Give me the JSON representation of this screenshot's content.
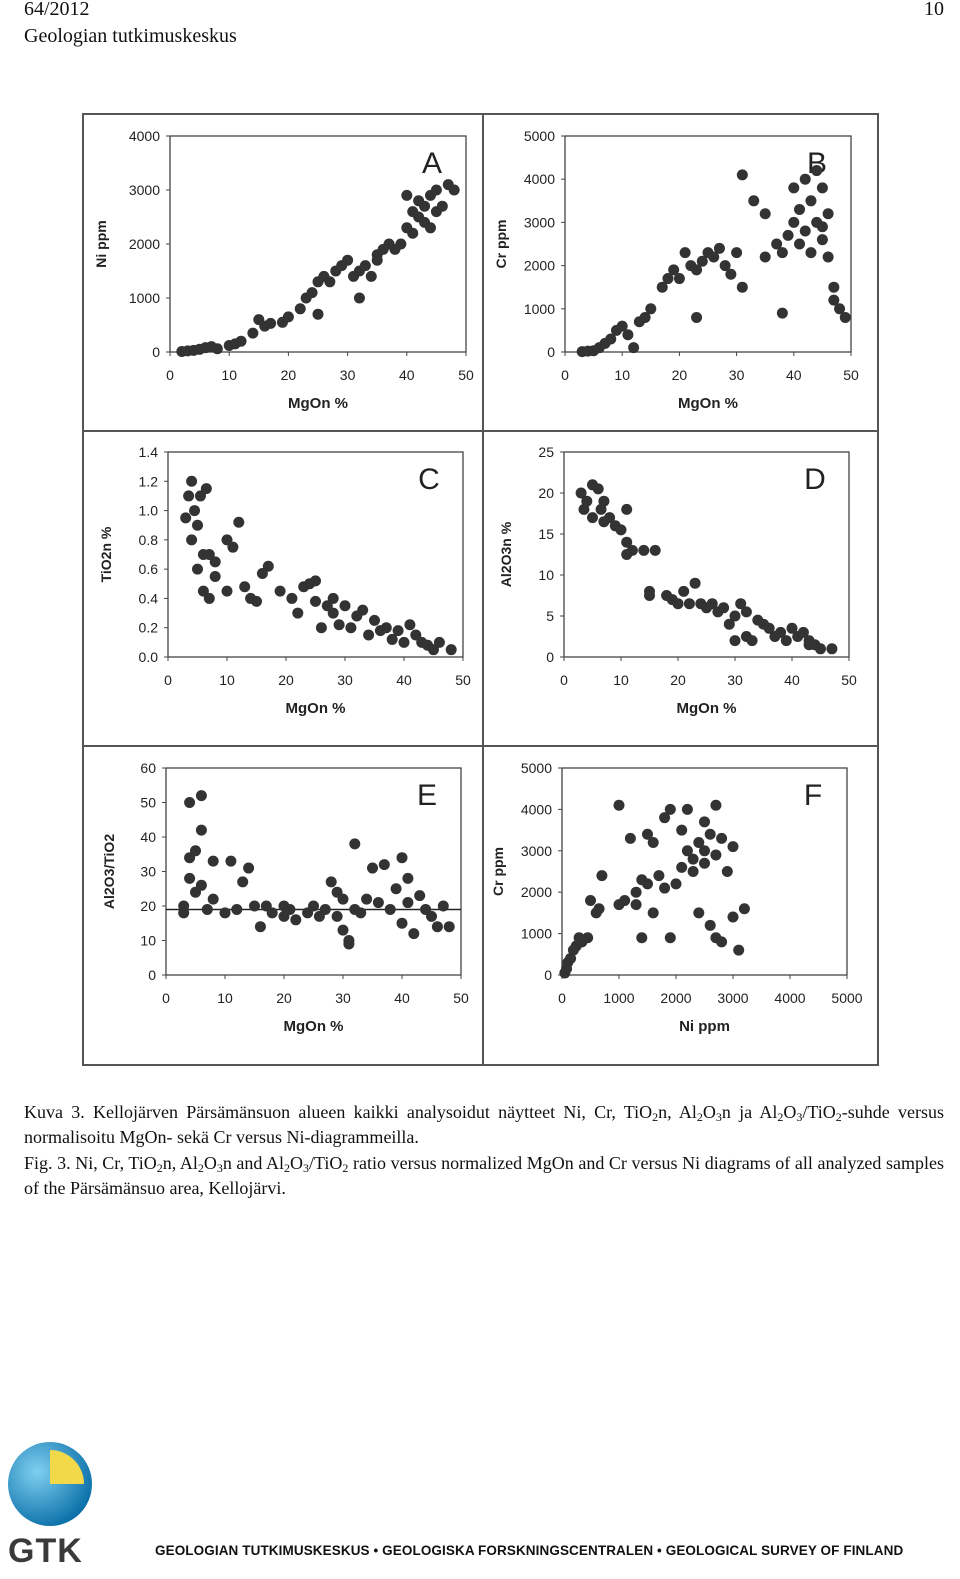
{
  "header": {
    "number": "64/2012",
    "page": "10",
    "publisher": "Geologian tutkimuskeskus"
  },
  "chart_data": [
    {
      "type": "scatter",
      "title": "A",
      "x_label": "MgOn %",
      "y_label": "Ni ppm",
      "color": "#333333",
      "xlim": [
        0,
        50
      ],
      "xticks": [
        0,
        10,
        20,
        30,
        40,
        50
      ],
      "ylim": [
        0,
        4000
      ],
      "yticks": [
        0,
        1000,
        2000,
        3000,
        4000
      ],
      "x": [
        2,
        3,
        4,
        5,
        6,
        7,
        8,
        10,
        11,
        12,
        14,
        16,
        17,
        19,
        22,
        23,
        24,
        25,
        26,
        27,
        28,
        29,
        30,
        31,
        32,
        33,
        34,
        35,
        36,
        37,
        38,
        39,
        40,
        40,
        41,
        41,
        42,
        42,
        43,
        43,
        44,
        44,
        45,
        45,
        46,
        47,
        48,
        32,
        25,
        35,
        20,
        15
      ],
      "values": [
        10,
        20,
        30,
        50,
        80,
        100,
        60,
        120,
        150,
        200,
        350,
        480,
        530,
        550,
        800,
        1000,
        1100,
        1300,
        1400,
        1300,
        1500,
        1600,
        1700,
        1400,
        1500,
        1600,
        1400,
        1800,
        1900,
        2000,
        1900,
        2000,
        2300,
        2900,
        2200,
        2600,
        2500,
        2800,
        2400,
        2700,
        2900,
        2300,
        2600,
        3000,
        2700,
        3100,
        3000,
        1000,
        700,
        1700,
        650,
        600
      ]
    },
    {
      "type": "scatter",
      "title": "B",
      "x_label": "MgOn %",
      "y_label": "Cr ppm",
      "color": "#333333",
      "xlim": [
        0,
        50
      ],
      "xticks": [
        0,
        10,
        20,
        30,
        40,
        50
      ],
      "ylim": [
        0,
        5000
      ],
      "yticks": [
        0,
        1000,
        2000,
        3000,
        4000,
        5000
      ],
      "x": [
        3,
        4,
        5,
        6,
        7,
        8,
        9,
        10,
        11,
        12,
        13,
        14,
        15,
        17,
        18,
        19,
        20,
        21,
        22,
        23,
        23,
        24,
        25,
        26,
        27,
        28,
        29,
        30,
        31,
        31,
        33,
        35,
        35,
        37,
        38,
        39,
        40,
        40,
        41,
        41,
        42,
        42,
        43,
        43,
        44,
        45,
        45,
        46,
        46,
        47,
        47,
        48,
        49,
        38,
        45,
        44
      ],
      "values": [
        10,
        20,
        30,
        100,
        200,
        300,
        500,
        600,
        400,
        100,
        700,
        800,
        1000,
        1500,
        1700,
        1900,
        1700,
        2300,
        2000,
        1900,
        800,
        2100,
        2300,
        2200,
        2400,
        2000,
        1800,
        2300,
        4100,
        1500,
        3500,
        3200,
        2200,
        2500,
        2300,
        2700,
        3000,
        3800,
        3300,
        2500,
        4000,
        2800,
        3500,
        2300,
        3000,
        3800,
        2600,
        3200,
        2200,
        1500,
        1200,
        1000,
        800,
        900,
        2900,
        4200
      ]
    },
    {
      "type": "scatter",
      "title": "C",
      "x_label": "MgOn %",
      "y_label": "TiO2n %",
      "color": "#333333",
      "xlim": [
        0,
        50
      ],
      "xticks": [
        0,
        10,
        20,
        30,
        40,
        50
      ],
      "ylim": [
        0,
        1.4
      ],
      "yticks": [
        {
          "value": 0,
          "label": "0.0"
        },
        0.2,
        0.4,
        0.6,
        0.8,
        {
          "value": 1,
          "label": "1.0"
        },
        1.2,
        1.4
      ],
      "x": [
        3,
        3.5,
        4,
        4,
        4.5,
        5,
        5,
        5.5,
        6,
        6,
        6.5,
        7,
        7,
        8,
        8,
        10,
        10,
        11,
        12,
        13,
        14,
        15,
        16,
        17,
        19,
        21,
        22,
        23,
        24,
        25,
        25,
        27,
        28,
        29,
        30,
        31,
        32,
        33,
        34,
        35,
        36,
        37,
        38,
        39,
        40,
        41,
        42,
        43,
        44,
        45,
        46,
        48,
        28,
        26
      ],
      "values": [
        0.95,
        1.1,
        1.2,
        0.8,
        1.0,
        0.9,
        0.6,
        1.1,
        0.7,
        0.45,
        1.15,
        0.4,
        0.7,
        0.65,
        0.55,
        0.8,
        0.45,
        0.75,
        0.92,
        0.48,
        0.4,
        0.38,
        0.57,
        0.62,
        0.45,
        0.4,
        0.3,
        0.48,
        0.5,
        0.52,
        0.38,
        0.35,
        0.3,
        0.22,
        0.35,
        0.2,
        0.28,
        0.32,
        0.15,
        0.25,
        0.18,
        0.2,
        0.12,
        0.18,
        0.1,
        0.22,
        0.15,
        0.1,
        0.08,
        0.05,
        0.1,
        0.05,
        0.4,
        0.2
      ]
    },
    {
      "type": "scatter",
      "title": "D",
      "x_label": "MgOn %",
      "y_label": "Al2O3n %",
      "color": "#333333",
      "xlim": [
        0,
        50
      ],
      "xticks": [
        0,
        10,
        20,
        30,
        40,
        50
      ],
      "ylim": [
        0,
        25
      ],
      "yticks": [
        0,
        5,
        10,
        15,
        20,
        25
      ],
      "x": [
        3,
        3.5,
        4,
        5,
        5,
        6,
        6.5,
        7,
        8,
        9,
        10,
        11,
        11,
        12,
        14,
        16,
        15,
        15,
        18,
        19,
        20,
        21,
        22,
        23,
        24,
        25,
        26,
        27,
        28,
        29,
        30,
        30,
        31,
        32,
        32,
        33,
        34,
        35,
        36,
        37,
        38,
        39,
        40,
        41,
        42,
        43,
        44,
        45,
        47,
        43,
        11,
        7
      ],
      "values": [
        20,
        18,
        19,
        17,
        21,
        20.5,
        18,
        16.5,
        17,
        16,
        15.5,
        12.5,
        14,
        13,
        13,
        13,
        8,
        7.5,
        7.5,
        7,
        6.5,
        8,
        6.5,
        9,
        6.5,
        6,
        6.5,
        5.5,
        6,
        4,
        5,
        2,
        6.5,
        5.5,
        2.5,
        2,
        4.5,
        4,
        3.5,
        2.5,
        3,
        2,
        3.5,
        2.5,
        3,
        2,
        1.5,
        1,
        1,
        1.5,
        18,
        19
      ]
    },
    {
      "type": "scatter",
      "title": "E",
      "x_label": "MgOn %",
      "y_label": "Al2O3/TiO2",
      "color": "#333333",
      "hline": 19,
      "xlim": [
        0,
        50
      ],
      "xticks": [
        0,
        10,
        20,
        30,
        40,
        50
      ],
      "ylim": [
        0,
        60
      ],
      "yticks": [
        0,
        10,
        20,
        30,
        40,
        50,
        60
      ],
      "x": [
        3,
        3,
        4,
        4,
        4,
        5,
        5,
        6,
        6,
        6,
        7,
        8,
        8,
        10,
        11,
        12,
        13,
        14,
        15,
        16,
        17,
        18,
        20,
        21,
        22,
        24,
        25,
        26,
        27,
        28,
        29,
        29,
        30,
        30,
        31,
        32,
        32,
        33,
        34,
        35,
        36,
        37,
        38,
        39,
        40,
        40,
        41,
        41,
        42,
        43,
        44,
        45,
        46,
        47,
        48,
        31,
        20
      ],
      "values": [
        20,
        18,
        50,
        34,
        28,
        36,
        24,
        52,
        42,
        26,
        19,
        33,
        22,
        18,
        33,
        19,
        27,
        31,
        20,
        14,
        20,
        18,
        17,
        19,
        16,
        18,
        20,
        17,
        19,
        27,
        24,
        17,
        22,
        13,
        10,
        19,
        38,
        18,
        22,
        31,
        21,
        32,
        19,
        25,
        34,
        15,
        28,
        21,
        12,
        23,
        19,
        17,
        14,
        20,
        14,
        9,
        20
      ]
    },
    {
      "type": "scatter",
      "title": "F",
      "x_label": "Ni ppm",
      "y_label": "Cr ppm",
      "color": "#333333",
      "xlim": [
        0,
        5000
      ],
      "xticks": [
        0,
        1000,
        2000,
        3000,
        4000,
        5000
      ],
      "ylim": [
        0,
        5000
      ],
      "yticks": [
        0,
        1000,
        2000,
        3000,
        4000,
        5000
      ],
      "x": [
        50,
        80,
        100,
        150,
        200,
        250,
        300,
        350,
        450,
        500,
        600,
        650,
        700,
        1000,
        1000,
        1100,
        1200,
        1300,
        1300,
        1400,
        1400,
        1500,
        1500,
        1600,
        1600,
        1700,
        1800,
        1800,
        1900,
        1900,
        2000,
        2100,
        2100,
        2200,
        2300,
        2300,
        2400,
        2400,
        2500,
        2500,
        2600,
        2600,
        2700,
        2700,
        2700,
        2800,
        2800,
        2900,
        3000,
        3000,
        3100,
        3200,
        2200,
        2500
      ],
      "values": [
        50,
        150,
        300,
        400,
        600,
        700,
        900,
        800,
        900,
        1800,
        1500,
        1600,
        2400,
        4100,
        1700,
        1800,
        3300,
        1700,
        2000,
        2300,
        900,
        2200,
        3400,
        1500,
        3200,
        2400,
        3800,
        2100,
        4000,
        900,
        2200,
        2600,
        3500,
        4000,
        2800,
        2500,
        3200,
        1500,
        3700,
        2700,
        3400,
        1200,
        2900,
        4100,
        900,
        3300,
        800,
        2500,
        3100,
        1400,
        600,
        1600,
        3000,
        3000
      ]
    }
  ],
  "caption": {
    "fi": [
      "Kuva 3. Kellojärven Pärsämänsuon alueen kaikki analysoidut näytteet Ni, Cr, TiO",
      {
        "sub": "2"
      },
      "n, Al",
      {
        "sub": "2"
      },
      "O",
      {
        "sub": "3"
      },
      "n ja Al",
      {
        "sub": "2"
      },
      "O",
      {
        "sub": "3"
      },
      "/TiO",
      {
        "sub": "2"
      },
      "-suhde versus normalisoitu MgOn- sekä Cr versus Ni-diagrammeilla."
    ],
    "en": [
      "Fig. 3. Ni, Cr, TiO",
      {
        "sub": "2"
      },
      "n, Al",
      {
        "sub": "2"
      },
      "O",
      {
        "sub": "3"
      },
      "n and Al",
      {
        "sub": "2"
      },
      "O",
      {
        "sub": "3"
      },
      "/TiO",
      {
        "sub": "2"
      },
      " ratio versus normalized MgOn and Cr versus Ni diagrams of all analyzed samples of the Pärsämänsuo area, Kellojärvi."
    ]
  },
  "footer": {
    "logo": "GTK",
    "text": "GEOLOGIAN TUTKIMUSKESKUS • GEOLOGISKA FORSKNINGSCENTRALEN • GEOLOGICAL SURVEY OF FINLAND"
  }
}
